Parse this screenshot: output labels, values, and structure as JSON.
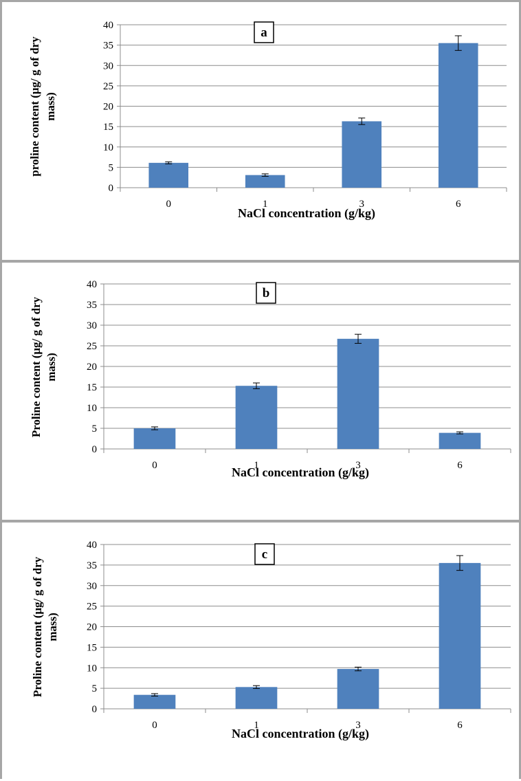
{
  "chart_data": [
    {
      "type": "bar",
      "panel_label": "a",
      "categories": [
        "0",
        "1",
        "3",
        "6"
      ],
      "values": [
        6.1,
        3.1,
        16.3,
        35.5
      ],
      "errors": [
        0.25,
        0.3,
        0.8,
        1.8
      ],
      "ylim": [
        0,
        40
      ],
      "yticks": [
        "0",
        "5",
        "10",
        "15",
        "20",
        "25",
        "30",
        "35",
        "40"
      ],
      "xlabel": "NaCl concentration (g/kg)",
      "ylabel_line1": "proline content (μg/ g of dry",
      "ylabel_line2": "mass)",
      "bar_color": "#4f81bd",
      "grid": true
    },
    {
      "type": "bar",
      "panel_label": "b",
      "categories": [
        "0",
        "1",
        "3",
        "6"
      ],
      "values": [
        5.0,
        15.3,
        26.7,
        3.9
      ],
      "errors": [
        0.35,
        0.7,
        1.1,
        0.25
      ],
      "ylim": [
        0,
        40
      ],
      "yticks": [
        "0",
        "5",
        "10",
        "15",
        "20",
        "25",
        "30",
        "35",
        "40"
      ],
      "xlabel": "NaCl concentration  (g/kg)",
      "ylabel_line1": "Proline content (μg/ g of dry",
      "ylabel_line2": "mass)",
      "bar_color": "#4f81bd",
      "grid": true
    },
    {
      "type": "bar",
      "panel_label": "c",
      "categories": [
        "0",
        "1",
        "3",
        "6"
      ],
      "values": [
        3.4,
        5.3,
        9.7,
        35.5
      ],
      "errors": [
        0.3,
        0.35,
        0.45,
        1.8
      ],
      "ylim": [
        0,
        40
      ],
      "yticks": [
        "0",
        "5",
        "10",
        "15",
        "20",
        "25",
        "30",
        "35",
        "40"
      ],
      "xlabel": "NaCl concentration (g/kg)",
      "ylabel_line1": "Proline content (μg/ g of dry",
      "ylabel_line2": "mass)",
      "bar_color": "#4f81bd",
      "grid": true
    }
  ]
}
